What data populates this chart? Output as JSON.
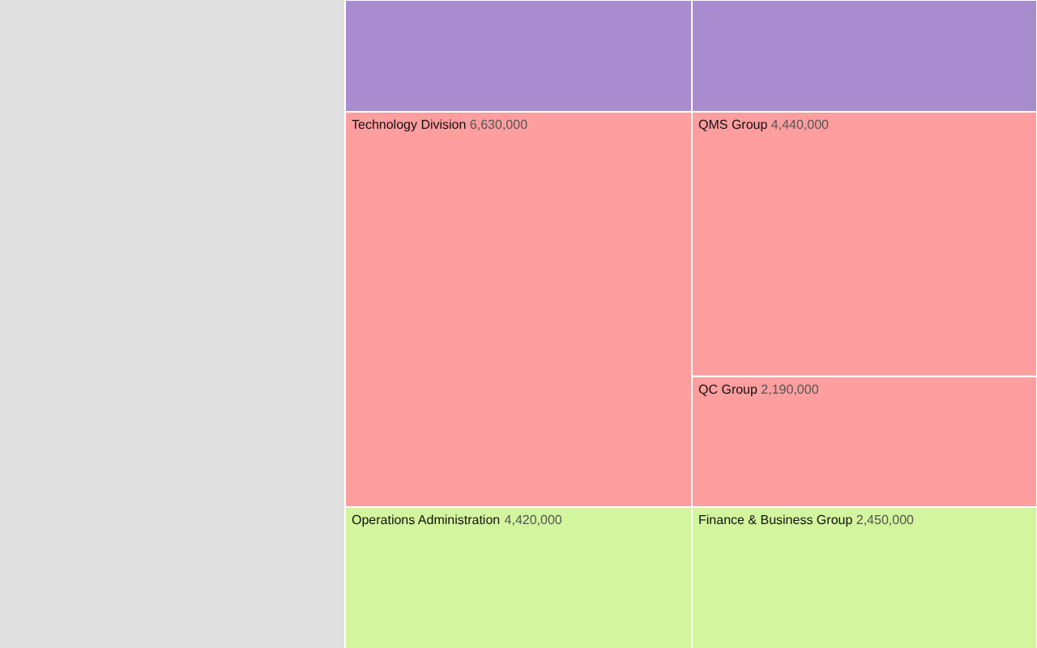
{
  "chart_data": {
    "type": "other",
    "categories": [
      null,
      null,
      "Technology Division",
      "QMS Group",
      "QC Group",
      "Operations Administration",
      "Finance & Business Group"
    ],
    "values": [
      null,
      null,
      6630000,
      4440000,
      2190000,
      4420000,
      2450000
    ],
    "value_labels": [
      null,
      null,
      "6,630,000",
      "4,440,000",
      "2,190,000",
      "4,420,000",
      "2,450,000"
    ],
    "colors": [
      "#a98ccf",
      "#a98ccf",
      "#ff9e9e",
      "#ff9e9e",
      "#ff9e9e",
      "#d2f59e",
      "#d2f59e"
    ]
  }
}
